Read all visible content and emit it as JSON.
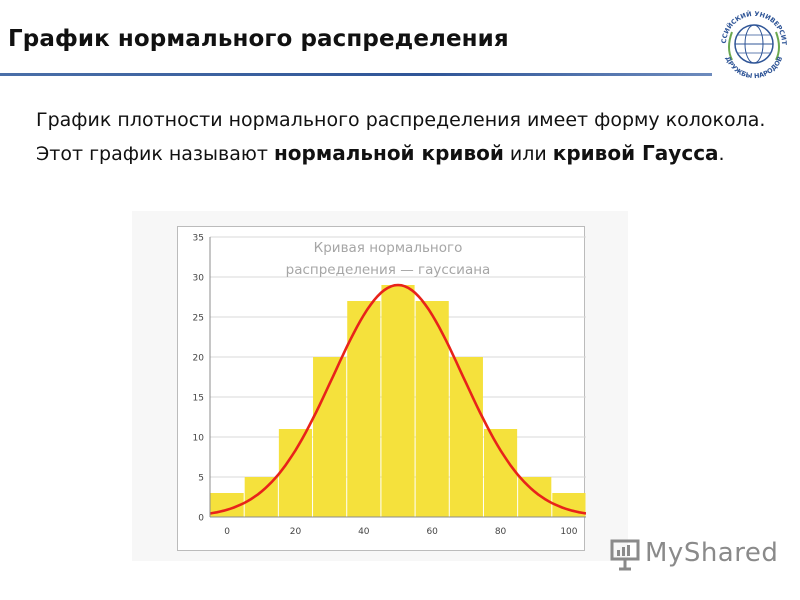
{
  "header": {
    "title": "График нормального распределения"
  },
  "logo": {
    "top_text": "РОССИЙСКИЙ УНИВЕРСИТЕТ",
    "bottom_text": "ДРУЖБЫ НАРОДОВ",
    "color": "#2f5597"
  },
  "body": {
    "text_1": "График плотности нормального распределения имеет форму колокола. Этот график называют ",
    "bold_1": "нормальной кривой",
    "text_2": " или ",
    "bold_2": "кривой Гаусса",
    "text_3": "."
  },
  "watermark": {
    "text": "MyShared",
    "icon": "presentation-board-icon"
  },
  "chart_data": {
    "type": "bar",
    "title_line_1": "Кривая нормального",
    "title_line_2": "распределения — гауссиана",
    "bar_color": "#f5e13c",
    "curve_color": "#e8231a",
    "categories": [
      0,
      10,
      20,
      30,
      40,
      50,
      60,
      70,
      80,
      90,
      100
    ],
    "values": [
      3,
      5,
      11,
      20,
      27,
      29,
      27,
      20,
      11,
      5,
      3
    ],
    "curve": {
      "type": "line",
      "mean": 50,
      "peak": 29,
      "std": 19
    },
    "xlim": [
      -5,
      105
    ],
    "ylim": [
      0,
      35
    ],
    "x_ticks": [
      0,
      20,
      40,
      60,
      80,
      100
    ],
    "y_ticks": [
      0,
      5,
      10,
      15,
      20,
      25,
      30,
      35
    ],
    "grid": true,
    "legend": "none"
  }
}
